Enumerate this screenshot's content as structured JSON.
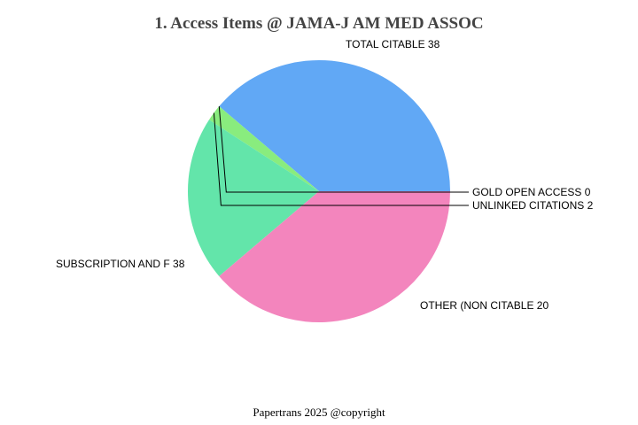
{
  "title": "1. Access Items @ JAMA-J AM MED ASSOC",
  "footer": "Papertrans 2025 @copyright",
  "chart_data": {
    "type": "pie",
    "title": "1. Access Items @ JAMA-J AM MED ASSOC",
    "categories": [
      "TOTAL CITABLE",
      "GOLD OPEN ACCESS",
      "UNLINKED CITATIONS",
      "OTHER (NON CITABLE",
      "SUBSCRIPTION AND F"
    ],
    "values": [
      38,
      0,
      2,
      20,
      38
    ],
    "colors": [
      "#61a8f5",
      "#f17cb0",
      "#89ec7e",
      "#63e5aa",
      "#f385bd"
    ],
    "labels": [
      "TOTAL CITABLE 38",
      "GOLD OPEN ACCESS 0",
      "UNLINKED CITATIONS 2",
      "OTHER (NON CITABLE 20",
      "SUBSCRIPTION AND F 38"
    ],
    "legend": "none (outside slice labels)"
  }
}
